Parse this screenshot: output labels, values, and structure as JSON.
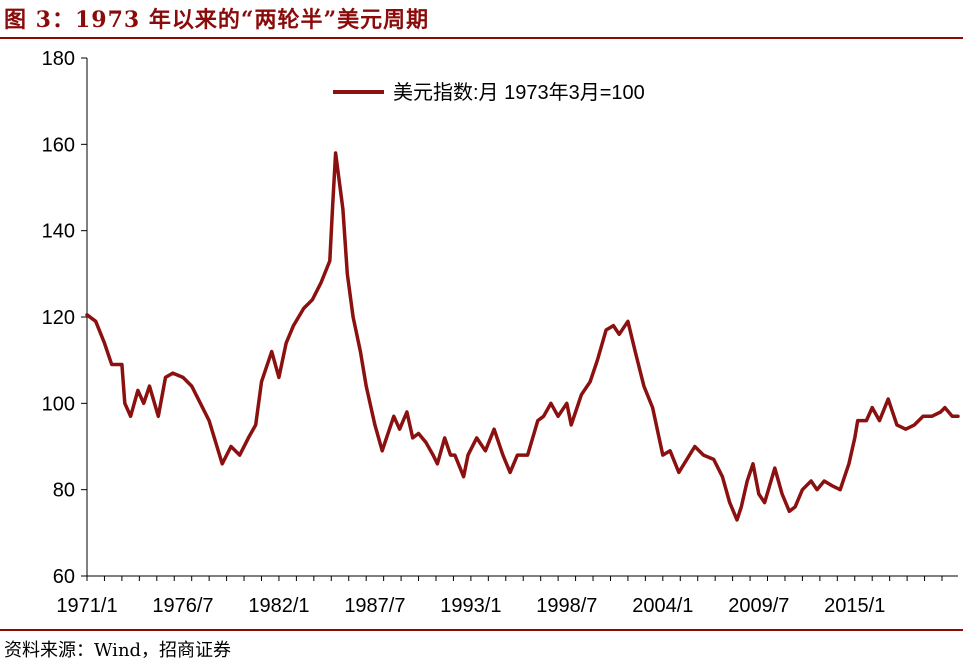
{
  "header": {
    "title": "图 3：1973 年以来的“两轮半”美元周期"
  },
  "footer": {
    "source": "资料来源：Wind，招商证券"
  },
  "colors": {
    "accent": "#8b0a0a",
    "series": "#8b1010"
  },
  "chart_data": {
    "type": "line",
    "title": "图 3：1973 年以来的“两轮半”美元周期",
    "xlabel": "",
    "ylabel": "",
    "x_range": [
      "1971/1",
      "2020/12"
    ],
    "ylim": [
      60,
      180
    ],
    "y_ticks": [
      60,
      80,
      100,
      120,
      140,
      160,
      180
    ],
    "x_tick_labels": [
      "1971/1",
      "1976/7",
      "1982/1",
      "1987/7",
      "1993/1",
      "1998/7",
      "2004/1",
      "2009/7",
      "2015/1"
    ],
    "grid": false,
    "legend_position": "top-center",
    "series": [
      {
        "name": "美元指数:月 1973年3月=100",
        "color": "#8b1010",
        "x": [
          "1971/1",
          "1971/7",
          "1972/1",
          "1972/6",
          "1973/1",
          "1973/3",
          "1973/7",
          "1973/12",
          "1974/4",
          "1974/8",
          "1975/2",
          "1975/7",
          "1975/12",
          "1976/7",
          "1977/1",
          "1977/7",
          "1978/1",
          "1978/10",
          "1979/4",
          "1979/10",
          "1980/4",
          "1980/9",
          "1981/1",
          "1981/8",
          "1982/1",
          "1982/6",
          "1982/11",
          "1983/6",
          "1983/12",
          "1984/6",
          "1984/12",
          "1985/2",
          "1985/4",
          "1985/9",
          "1985/12",
          "1986/4",
          "1986/9",
          "1987/1",
          "1987/7",
          "1987/12",
          "1988/3",
          "1988/8",
          "1988/12",
          "1989/5",
          "1989/9",
          "1990/1",
          "1990/6",
          "1990/11",
          "1991/2",
          "1991/7",
          "1991/11",
          "1992/2",
          "1992/8",
          "1992/11",
          "1993/5",
          "1993/11",
          "1994/5",
          "1994/11",
          "1995/4",
          "1995/9",
          "1996/4",
          "1996/11",
          "1997/3",
          "1997/8",
          "1998/1",
          "1998/7",
          "1998/10",
          "1999/5",
          "1999/11",
          "2000/4",
          "2000/10",
          "2001/3",
          "2001/7",
          "2002/1",
          "2002/6",
          "2002/12",
          "2003/6",
          "2004/1",
          "2004/6",
          "2004/12",
          "2005/11",
          "2006/5",
          "2006/12",
          "2007/6",
          "2007/11",
          "2008/4",
          "2008/7",
          "2008/11",
          "2009/3",
          "2009/7",
          "2009/11",
          "2010/6",
          "2010/11",
          "2011/4",
          "2011/8",
          "2012/1",
          "2012/7",
          "2012/11",
          "2013/4",
          "2013/9",
          "2014/3",
          "2014/7",
          "2014/9",
          "2015/1",
          "2015/3",
          "2015/9",
          "2016/1",
          "2016/6",
          "2016/12",
          "2017/6",
          "2017/12",
          "2018/6",
          "2018/12",
          "2019/6",
          "2019/12",
          "2020/3",
          "2020/8",
          "2020/12"
        ],
        "values": [
          120.5,
          119,
          114,
          109,
          109,
          100,
          97,
          103,
          100,
          104,
          97,
          106,
          107,
          106,
          104,
          100,
          96,
          86,
          90,
          88,
          92,
          95,
          105,
          112,
          106,
          114,
          118,
          122,
          124,
          128,
          133,
          146,
          158,
          145,
          130,
          120,
          112,
          104,
          95,
          89,
          92,
          97,
          94,
          98,
          92,
          93,
          91,
          88,
          86,
          92,
          88,
          88,
          83,
          88,
          92,
          89,
          94,
          88,
          84,
          88,
          88,
          96,
          97,
          100,
          97,
          100,
          95,
          102,
          105,
          110,
          117,
          118,
          116,
          119,
          112,
          104,
          99,
          88,
          89,
          84,
          90,
          88,
          87,
          83,
          77,
          73,
          76,
          82,
          86,
          79,
          77,
          85,
          79,
          75,
          76,
          80,
          82,
          80,
          82,
          81,
          80,
          84,
          86,
          92,
          96,
          96,
          99,
          96,
          101,
          95,
          94,
          95,
          97,
          97,
          98,
          99,
          97,
          97
        ]
      }
    ]
  }
}
